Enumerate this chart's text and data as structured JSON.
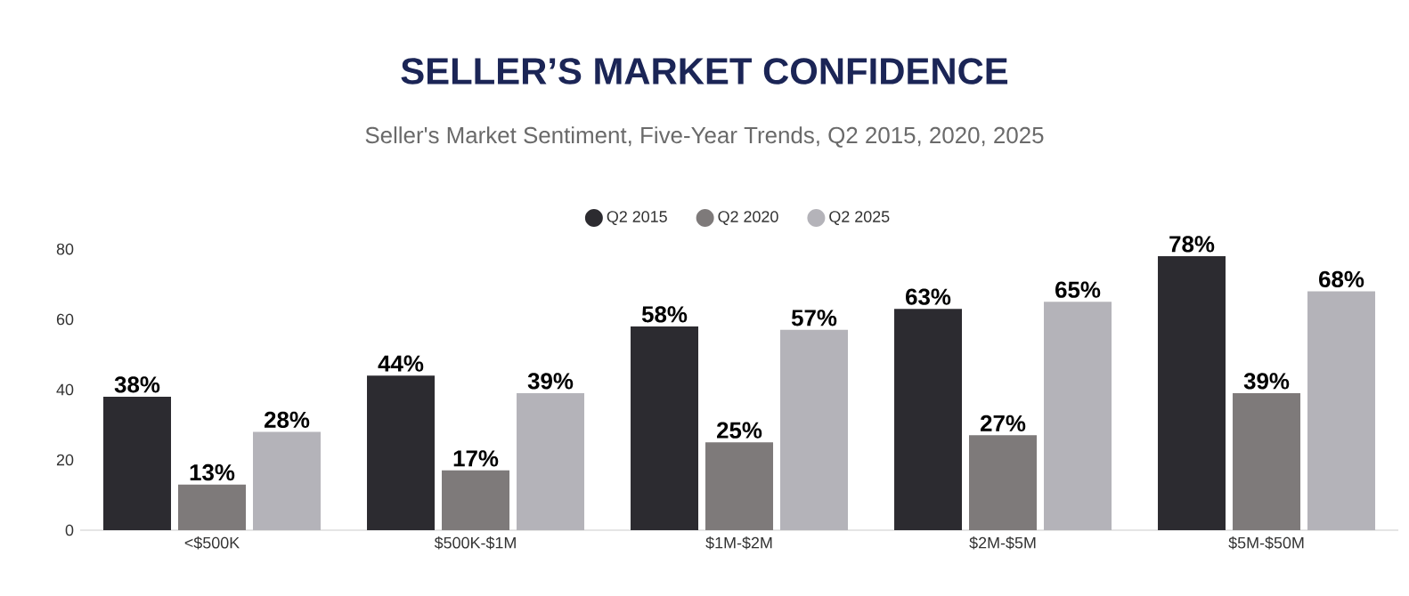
{
  "chart_data": {
    "type": "bar",
    "title": "SELLER’S MARKET CONFIDENCE",
    "subtitle": "Seller's Market Sentiment, Five-Year Trends, Q2 2015, 2020, 2025",
    "categories": [
      "<$500K",
      "$500K-$1M",
      "$1M-$2M",
      "$2M-$5M",
      "$5M-$50M"
    ],
    "series": [
      {
        "name": "Q2 2015",
        "color": "#2c2b30",
        "values": [
          38,
          44,
          58,
          63,
          78
        ],
        "value_labels": [
          "38%",
          "44%",
          "58%",
          "63%",
          "78%"
        ]
      },
      {
        "name": "Q2 2020",
        "color": "#7e7a7a",
        "values": [
          13,
          17,
          25,
          27,
          39
        ],
        "value_labels": [
          "13%",
          "17%",
          "25%",
          "27%",
          "39%"
        ]
      },
      {
        "name": "Q2 2025",
        "color": "#b4b3b9",
        "values": [
          28,
          39,
          57,
          65,
          68
        ],
        "value_labels": [
          "28%",
          "39%",
          "57%",
          "65%",
          "68%"
        ]
      }
    ],
    "ylim": [
      0,
      80
    ],
    "yticks": [
      0,
      20,
      40,
      60,
      80
    ],
    "grid": false,
    "legend": "top"
  }
}
